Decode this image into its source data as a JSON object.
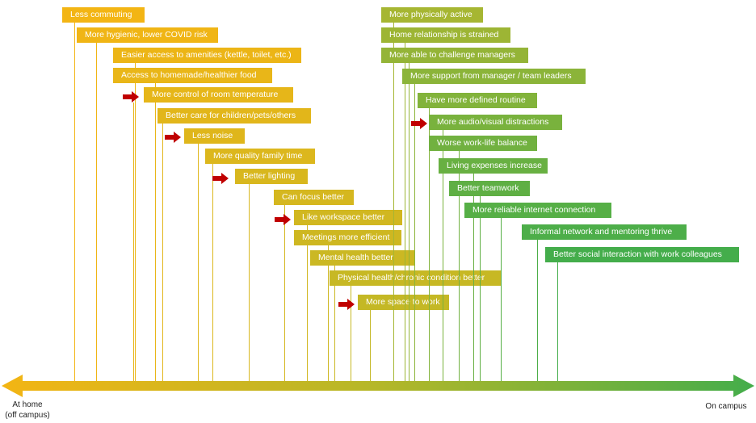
{
  "colors": {
    "home": "#f3b514",
    "campus": "#44ad4b",
    "arrow": "#c00000"
  },
  "axis": {
    "left_label": "At home\n(off campus)",
    "right_label": "On campus"
  },
  "items": [
    {
      "label": "Less commuting",
      "side": "home",
      "arrow": false
    },
    {
      "label": "More hygienic, lower COVID risk",
      "side": "home",
      "arrow": false
    },
    {
      "label": "Easier access to amenities (kettle, toilet, etc.)",
      "side": "home",
      "arrow": false
    },
    {
      "label": "Access to homemade/healthier food",
      "side": "home",
      "arrow": false
    },
    {
      "label": "More control of room temperature",
      "side": "home",
      "arrow": true
    },
    {
      "label": "Better care for children/pets/others",
      "side": "home",
      "arrow": false
    },
    {
      "label": "Less noise",
      "side": "home",
      "arrow": true
    },
    {
      "label": "More quality family time",
      "side": "home",
      "arrow": false
    },
    {
      "label": "Better lighting",
      "side": "home",
      "arrow": true
    },
    {
      "label": "Can focus better",
      "side": "home",
      "arrow": false
    },
    {
      "label": "Like workspace better",
      "side": "home",
      "arrow": true
    },
    {
      "label": "Meetings more efficient",
      "side": "home",
      "arrow": false
    },
    {
      "label": "Mental health better",
      "side": "home",
      "arrow": false
    },
    {
      "label": "Physical health/chronic condition better",
      "side": "home",
      "arrow": false
    },
    {
      "label": "More space to work",
      "side": "home",
      "arrow": true
    },
    {
      "label": "More physically active",
      "side": "campus",
      "arrow": false
    },
    {
      "label": "Home relationship is strained",
      "side": "campus",
      "arrow": false
    },
    {
      "label": "More able to challenge managers",
      "side": "campus",
      "arrow": false
    },
    {
      "label": "More support from manager / team leaders",
      "side": "campus",
      "arrow": false
    },
    {
      "label": "Have more defined routine",
      "side": "campus",
      "arrow": false
    },
    {
      "label": "More audio/visual distractions",
      "side": "campus",
      "arrow": true
    },
    {
      "label": "Worse work-life balance",
      "side": "campus",
      "arrow": false
    },
    {
      "label": "Living expenses increase",
      "side": "campus",
      "arrow": false
    },
    {
      "label": "Better teamwork",
      "side": "campus",
      "arrow": false
    },
    {
      "label": "More reliable internet connection",
      "side": "campus",
      "arrow": false
    },
    {
      "label": "Informal network and mentoring thrive",
      "side": "campus",
      "arrow": false
    },
    {
      "label": "Better social interaction with work colleagues",
      "side": "campus",
      "arrow": false
    }
  ]
}
